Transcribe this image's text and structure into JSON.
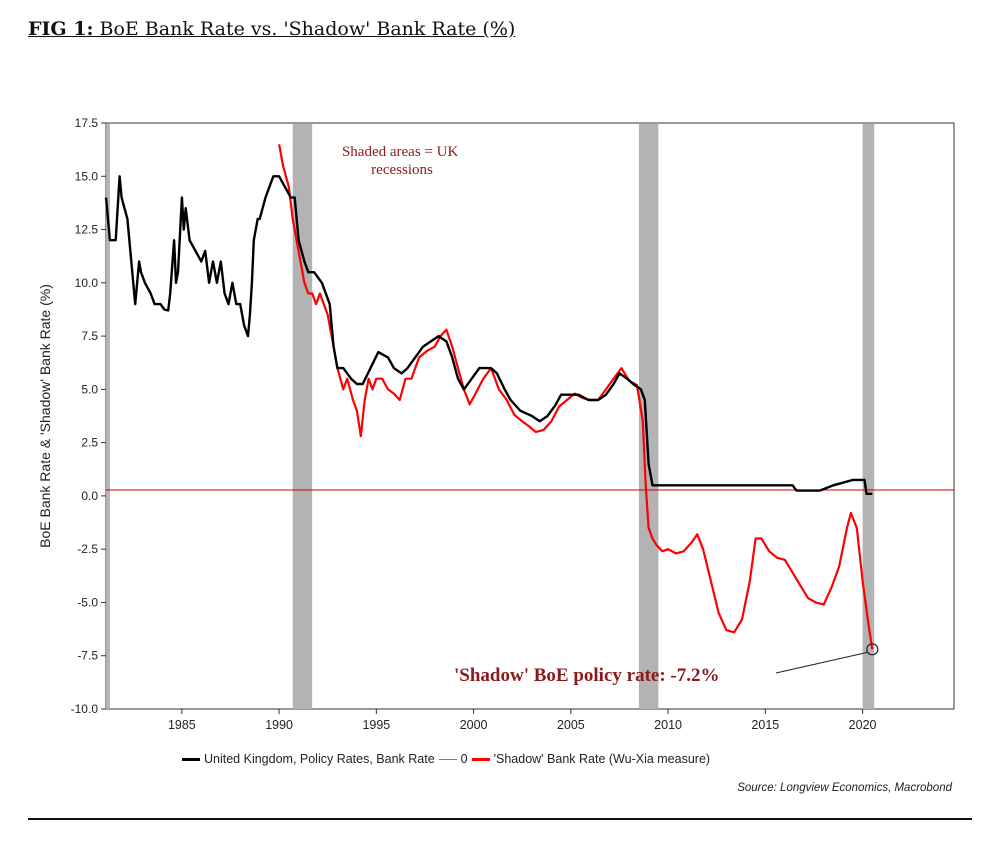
{
  "figure": {
    "label": "FIG 1:",
    "title": " BoE Bank Rate vs. 'Shadow' Bank Rate (%)"
  },
  "source": "Source: Longview Economics, Macrobond",
  "chart_data": {
    "type": "line",
    "title": "",
    "xlabel": "",
    "ylabel": "BoE Bank Rate & 'Shadow' Bank Rate (%)",
    "xlim": [
      1981.1,
      2024.7
    ],
    "ylim": [
      -10.0,
      17.5
    ],
    "x_ticks": [
      1985,
      1990,
      1995,
      2000,
      2005,
      2010,
      2015,
      2020
    ],
    "y_ticks": [
      17.5,
      15.0,
      12.5,
      10.0,
      7.5,
      5.0,
      2.5,
      0.0,
      -2.5,
      -5.0,
      -7.5,
      -10.0
    ],
    "y_tick_labels": [
      "17.5",
      "15.0",
      "12.5",
      "10.0",
      "7.5",
      "5.0",
      "2.5",
      "0.0",
      "-2.5",
      "-5.0",
      "-7.5",
      "-10.0"
    ],
    "grid": false,
    "legend_position": "bottom",
    "recessions": [
      [
        1981.1,
        1981.3
      ],
      [
        1990.7,
        1991.7
      ],
      [
        2008.5,
        2009.5
      ],
      [
        2020.0,
        2020.6
      ]
    ],
    "annotation_shaded": "Shaded areas = UK recessions",
    "annotation_callout": "'Shadow' BoE policy rate: -7.2%",
    "callout_point": [
      2020.5,
      -7.2
    ],
    "colors": {
      "bank_rate": "#000000",
      "shadow_rate": "#ff0000",
      "zero_line": "#cc0000",
      "recession": "#b3b3b3",
      "annotation_text": "#8b1a1a"
    },
    "series": [
      {
        "name": "United Kingdom, Policy Rates, Bank Rate",
        "color": "#000000",
        "x": [
          1981.1,
          1981.3,
          1981.6,
          1981.8,
          1981.9,
          1982.2,
          1982.4,
          1982.6,
          1982.8,
          1982.9,
          1983.1,
          1983.4,
          1983.6,
          1983.9,
          1984.1,
          1984.3,
          1984.4,
          1984.6,
          1984.7,
          1984.8,
          1985.0,
          1985.1,
          1985.2,
          1985.4,
          1985.7,
          1986.0,
          1986.2,
          1986.4,
          1986.6,
          1986.8,
          1987.0,
          1987.2,
          1987.4,
          1987.6,
          1987.8,
          1988.0,
          1988.2,
          1988.4,
          1988.5,
          1988.6,
          1988.7,
          1988.9,
          1989.0,
          1989.3,
          1989.7,
          1990.0,
          1990.6,
          1990.8,
          1991.0,
          1991.3,
          1991.5,
          1991.8,
          1992.2,
          1992.6,
          1992.8,
          1993.0,
          1993.3,
          1993.7,
          1994.0,
          1994.3,
          1994.7,
          1995.1,
          1995.6,
          1995.9,
          1996.3,
          1996.6,
          1997.0,
          1997.4,
          1997.8,
          1998.2,
          1998.6,
          1998.9,
          1999.2,
          1999.5,
          1999.9,
          2000.3,
          2000.9,
          2001.2,
          2001.6,
          2001.9,
          2002.4,
          2003.0,
          2003.4,
          2003.8,
          2004.2,
          2004.5,
          2004.8,
          2005.4,
          2005.9,
          2006.4,
          2006.8,
          2007.2,
          2007.5,
          2007.9,
          2008.2,
          2008.6,
          2008.8,
          2008.9,
          2009.0,
          2009.2,
          2010,
          2012,
          2014,
          2016.4,
          2016.6,
          2017.8,
          2018.5,
          2019.5,
          2020.1,
          2020.2,
          2020.5
        ],
        "values": [
          14,
          12,
          12,
          15,
          14,
          13,
          11,
          9,
          11,
          10.5,
          10,
          9.5,
          9,
          9.0,
          8.75,
          8.7,
          9.5,
          12,
          10,
          10.5,
          14,
          12.5,
          13.5,
          12,
          11.5,
          11,
          11.5,
          10,
          11,
          10,
          11,
          9.5,
          9,
          10,
          9,
          9.0,
          8.0,
          7.5,
          8.5,
          10,
          12,
          13,
          13,
          14,
          15,
          15,
          14,
          14,
          12.0,
          11.0,
          10.5,
          10.5,
          10.0,
          9.0,
          7.0,
          6.0,
          6.0,
          5.5,
          5.25,
          5.25,
          6.0,
          6.75,
          6.5,
          6.0,
          5.75,
          6.0,
          6.5,
          7.0,
          7.25,
          7.5,
          7.25,
          6.5,
          5.5,
          5.0,
          5.5,
          6.0,
          6.0,
          5.75,
          5.0,
          4.5,
          4.0,
          3.75,
          3.5,
          3.75,
          4.25,
          4.75,
          4.75,
          4.75,
          4.5,
          4.5,
          4.75,
          5.25,
          5.75,
          5.5,
          5.25,
          5.0,
          4.5,
          3.0,
          1.5,
          0.5,
          0.5,
          0.5,
          0.5,
          0.5,
          0.25,
          0.25,
          0.5,
          0.75,
          0.75,
          0.1,
          0.1
        ]
      },
      {
        "name": "'Shadow' Bank Rate (Wu-Xia measure)",
        "color": "#ff0000",
        "x": [
          1990.0,
          1990.2,
          1990.5,
          1990.7,
          1990.9,
          1991.1,
          1991.3,
          1991.5,
          1991.7,
          1991.9,
          1992.1,
          1992.3,
          1992.5,
          1992.8,
          1993.0,
          1993.3,
          1993.5,
          1993.8,
          1994.0,
          1994.2,
          1994.4,
          1994.6,
          1994.8,
          1995.0,
          1995.3,
          1995.6,
          1995.9,
          1996.2,
          1996.5,
          1996.8,
          1997.2,
          1997.6,
          1998.0,
          1998.3,
          1998.6,
          1998.9,
          1999.2,
          1999.5,
          1999.8,
          2000.1,
          2000.5,
          2000.9,
          2001.3,
          2001.7,
          2002.1,
          2002.5,
          2002.8,
          2003.2,
          2003.6,
          2004.0,
          2004.4,
          2004.8,
          2005.2,
          2005.6,
          2006.0,
          2006.4,
          2006.8,
          2007.2,
          2007.6,
          2008.0,
          2008.4,
          2008.7,
          2008.85,
          2009.0,
          2009.2,
          2009.4,
          2009.7,
          2010.0,
          2010.4,
          2010.8,
          2011.2,
          2011.5,
          2011.8,
          2012.2,
          2012.6,
          2013.0,
          2013.4,
          2013.8,
          2014.2,
          2014.5,
          2014.8,
          2015.2,
          2015.6,
          2016.0,
          2016.4,
          2016.8,
          2017.2,
          2017.6,
          2018.0,
          2018.4,
          2018.8,
          2019.2,
          2019.4,
          2019.7,
          2020.0,
          2020.3,
          2020.5
        ],
        "values": [
          16.5,
          15.5,
          14.5,
          13.0,
          12.0,
          11.0,
          10.0,
          9.5,
          9.5,
          9.0,
          9.5,
          9.0,
          8.5,
          7.0,
          6.0,
          5.0,
          5.5,
          4.5,
          4.0,
          2.8,
          4.5,
          5.5,
          5.0,
          5.5,
          5.5,
          5.0,
          4.8,
          4.5,
          5.5,
          5.5,
          6.5,
          6.8,
          7.0,
          7.5,
          7.8,
          7.0,
          6.0,
          5.0,
          4.3,
          4.8,
          5.5,
          6.0,
          5.0,
          4.5,
          3.8,
          3.5,
          3.3,
          3.0,
          3.1,
          3.5,
          4.2,
          4.5,
          4.8,
          4.6,
          4.5,
          4.5,
          5.0,
          5.5,
          6.0,
          5.4,
          5.2,
          3.5,
          0.5,
          -1.5,
          -2.0,
          -2.3,
          -2.6,
          -2.5,
          -2.7,
          -2.6,
          -2.2,
          -1.8,
          -2.5,
          -4.0,
          -5.5,
          -6.3,
          -6.4,
          -5.8,
          -4.0,
          -2.0,
          -2.0,
          -2.6,
          -2.9,
          -3.0,
          -3.6,
          -4.2,
          -4.8,
          -5.0,
          -5.1,
          -4.3,
          -3.3,
          -1.5,
          -0.8,
          -1.5,
          -4.0,
          -6.0,
          -7.2
        ]
      }
    ],
    "legend_items": [
      {
        "label": "United Kingdom, Policy Rates, Bank Rate",
        "color": "#000000"
      },
      {
        "label": "0",
        "color": "#ff4444"
      },
      {
        "label": "'Shadow' Bank Rate (Wu-Xia measure)",
        "color": "#ff0000"
      }
    ]
  }
}
